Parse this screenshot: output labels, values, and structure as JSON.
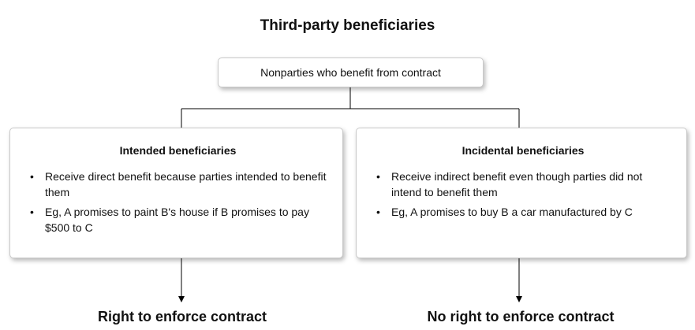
{
  "title": "Third-party beneficiaries",
  "root": {
    "label": "Nonparties who benefit from contract"
  },
  "branches": [
    {
      "heading": "Intended beneficiaries",
      "bullets": [
        "Receive direct benefit because parties intended to benefit them",
        "Eg, A promises to paint B's house if B promises to pay $500 to C"
      ],
      "outcome": "Right to enforce contract"
    },
    {
      "heading": "Incidental beneficiaries",
      "bullets": [
        "Receive indirect benefit even though parties did not intend to benefit them",
        "Eg, A promises to buy B a car manufactured by C"
      ],
      "outcome": "No right to enforce contract"
    }
  ]
}
